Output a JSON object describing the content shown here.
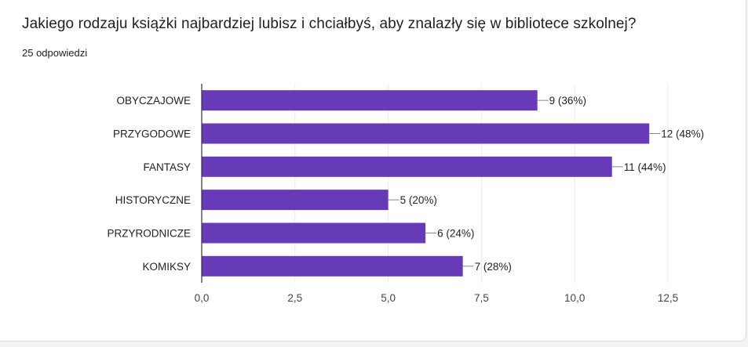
{
  "question": "Jakiego rodzaju książki najbardziej lubisz i chciałbyś, aby znalazły się w bibliotece szkolnej?",
  "responses": "25 odpowiedzi",
  "colors": {
    "bar": "#673ab7",
    "grid": "#ebebeb",
    "axis": "#333333"
  },
  "chart_data": {
    "type": "bar",
    "orientation": "horizontal",
    "categories": [
      "OBYCZAJOWE",
      "PRZYGODOWE",
      "FANTASY",
      "HISTORYCZNE",
      "PRZYRODNICZE",
      "KOMIKSY"
    ],
    "values": [
      9,
      12,
      11,
      5,
      6,
      7
    ],
    "data_labels": [
      "9 (36%)",
      "12 (48%)",
      "11 (44%)",
      "5 (20%)",
      "6 (24%)",
      "7 (28%)"
    ],
    "xlim": [
      0,
      12.5
    ],
    "xticks": [
      0,
      2.5,
      5,
      7.5,
      10,
      12.5
    ],
    "xtick_labels": [
      "0,0",
      "2,5",
      "5,0",
      "7,5",
      "10,0",
      "12,5"
    ],
    "grid": true,
    "legend": "none"
  }
}
